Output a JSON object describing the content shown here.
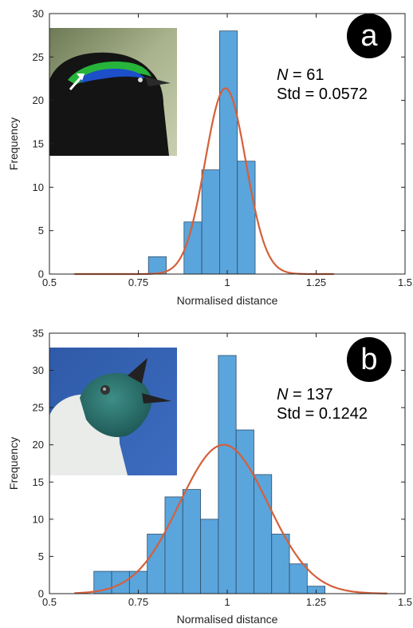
{
  "chart_data": [
    {
      "type": "bar",
      "panel": "a",
      "n_text": "N",
      "n_value": "= 61",
      "std_text": "Std = 0.0572",
      "xlabel": "Normalised distance",
      "ylabel": "Frequency",
      "xlim": [
        0.5,
        1.5
      ],
      "ylim": [
        0,
        30
      ],
      "xticks": [
        "0.5",
        "0.75",
        "1",
        "1.25",
        "1.5"
      ],
      "xtick_values": [
        0.5,
        0.75,
        1.0,
        1.25,
        1.5
      ],
      "yticks": [
        0,
        5,
        10,
        15,
        20,
        25,
        30
      ],
      "bins": [
        {
          "x0": 0.7785,
          "x1": 0.8285,
          "value": 2
        },
        {
          "x0": 0.8285,
          "x1": 0.8785,
          "value": 0
        },
        {
          "x0": 0.8785,
          "x1": 0.9285,
          "value": 6
        },
        {
          "x0": 0.9285,
          "x1": 0.9785,
          "value": 12
        },
        {
          "x0": 0.9785,
          "x1": 1.0285,
          "value": 28
        },
        {
          "x0": 1.0285,
          "x1": 1.0785,
          "value": 13
        }
      ],
      "fit": {
        "type": "normal",
        "mean": 0.995,
        "peak": 21.4,
        "std": 0.0572,
        "x_range": [
          0.57,
          1.3
        ]
      },
      "bar_color": "#5aa5dc",
      "fit_color": "#d4603a",
      "grid": false
    },
    {
      "type": "bar",
      "panel": "b",
      "n_text": "N",
      "n_value": "= 137",
      "std_text": "Std = 0.1242",
      "xlabel": "Normalised distance",
      "ylabel": "Frequency",
      "xlim": [
        0.5,
        1.5
      ],
      "ylim": [
        0,
        35
      ],
      "xticks": [
        "0.5",
        "0.75",
        "1",
        "1.25",
        "1.5"
      ],
      "xtick_values": [
        0.5,
        0.75,
        1.0,
        1.25,
        1.5
      ],
      "yticks": [
        0,
        5,
        10,
        15,
        20,
        25,
        30,
        35
      ],
      "bins": [
        {
          "x0": 0.625,
          "x1": 0.675,
          "value": 3
        },
        {
          "x0": 0.675,
          "x1": 0.725,
          "value": 3
        },
        {
          "x0": 0.725,
          "x1": 0.775,
          "value": 3
        },
        {
          "x0": 0.775,
          "x1": 0.825,
          "value": 8
        },
        {
          "x0": 0.825,
          "x1": 0.875,
          "value": 13
        },
        {
          "x0": 0.875,
          "x1": 0.925,
          "value": 14
        },
        {
          "x0": 0.925,
          "x1": 0.975,
          "value": 10
        },
        {
          "x0": 0.975,
          "x1": 1.025,
          "value": 32
        },
        {
          "x0": 1.025,
          "x1": 1.075,
          "value": 22
        },
        {
          "x0": 1.075,
          "x1": 1.125,
          "value": 16
        },
        {
          "x0": 1.125,
          "x1": 1.175,
          "value": 8
        },
        {
          "x0": 1.175,
          "x1": 1.225,
          "value": 4
        },
        {
          "x0": 1.225,
          "x1": 1.275,
          "value": 1
        }
      ],
      "fit": {
        "type": "normal",
        "mean": 0.99,
        "peak": 20,
        "std": 0.1242,
        "x_range": [
          0.57,
          1.45
        ]
      },
      "bar_color": "#5aa5dc",
      "fit_color": "#d4603a",
      "grid": false
    }
  ],
  "panels": {
    "a": {
      "badge": "a",
      "image": "bird-of-paradise-head-photo"
    },
    "b": {
      "badge": "b",
      "image": "bellbird-head-photo"
    }
  },
  "colors": {
    "bar": "#5aa5dc",
    "bar_edge": "#2f4d66",
    "fit": "#d4603a",
    "badge": "#000000"
  }
}
